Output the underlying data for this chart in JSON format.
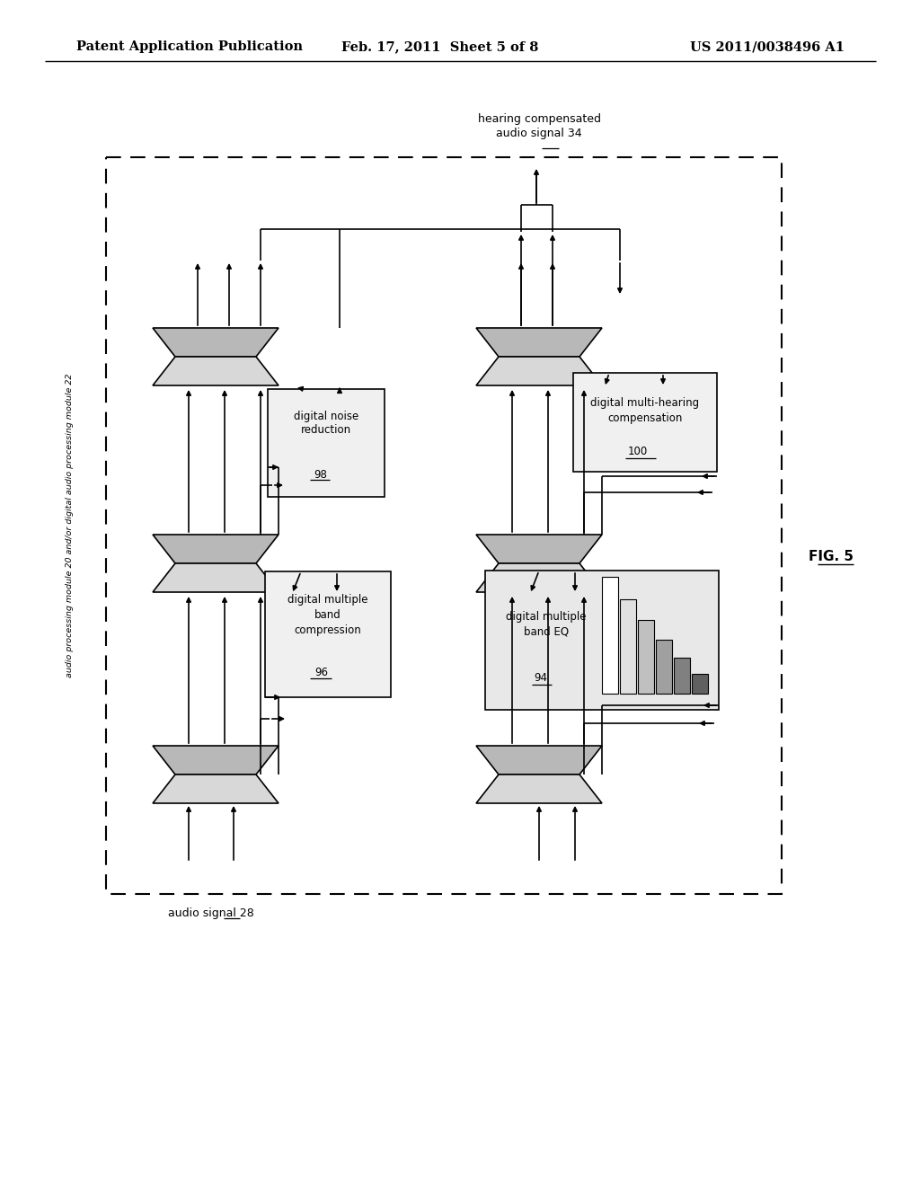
{
  "header_left": "Patent Application Publication",
  "header_center": "Feb. 17, 2011  Sheet 5 of 8",
  "header_right": "US 2011/0038496 A1",
  "fig_label": "FIG. 5",
  "side_label": "audio processing module 20 and/or digital audio processing module 22",
  "label_audio_in": "audio signal 28",
  "label_audio_out": "hearing compensated\naudio signal 34",
  "bg_color": "#ffffff"
}
